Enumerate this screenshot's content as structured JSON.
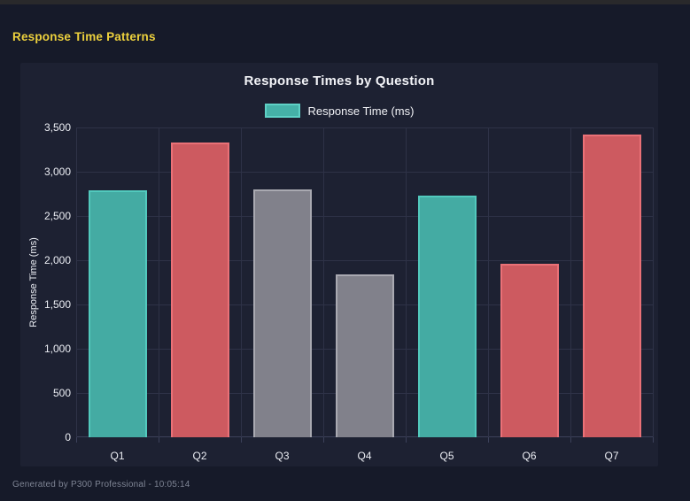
{
  "page": {
    "heading": "Response Time Patterns",
    "footer": "Generated by P300 Professional - 10:05:14"
  },
  "colors": {
    "page_bg": "#161a29",
    "top_strip": "#29292b",
    "panel_bg": "#1d2132",
    "heading_text": "#edd13d",
    "title_text": "#f2f3f7",
    "axis_text": "#eceef4",
    "grid": "#2e3247",
    "footer_text": "#7e8494"
  },
  "chart_data": {
    "type": "bar",
    "title": "Response Times by Question",
    "legend": {
      "label": "Response Time (ms)",
      "fill": "#45b1a8",
      "border": "#5ed1c6"
    },
    "legend_position": "top",
    "categories": [
      "Q1",
      "Q2",
      "Q3",
      "Q4",
      "Q5",
      "Q6",
      "Q7"
    ],
    "values": [
      2790,
      3330,
      2800,
      1840,
      2730,
      1960,
      3420
    ],
    "bar_colors": [
      "teal",
      "red",
      "gray",
      "gray",
      "teal",
      "red",
      "red"
    ],
    "palette": {
      "teal": {
        "fill": "#44aba3",
        "border": "#52c9bd"
      },
      "red": {
        "fill": "#cd5a60",
        "border": "#ea7177"
      },
      "gray": {
        "fill": "#81818b",
        "border": "#a9a9b1"
      }
    },
    "xlabel": "",
    "ylabel": "Response Time (ms)",
    "ylim": [
      0,
      3500
    ],
    "ytick_values": [
      0,
      500,
      1000,
      1500,
      2000,
      2500,
      3000,
      3500
    ],
    "ytick_labels": [
      "0",
      "500",
      "1,000",
      "1,500",
      "2,000",
      "2,500",
      "3,000",
      "3,500"
    ],
    "grid": true
  }
}
